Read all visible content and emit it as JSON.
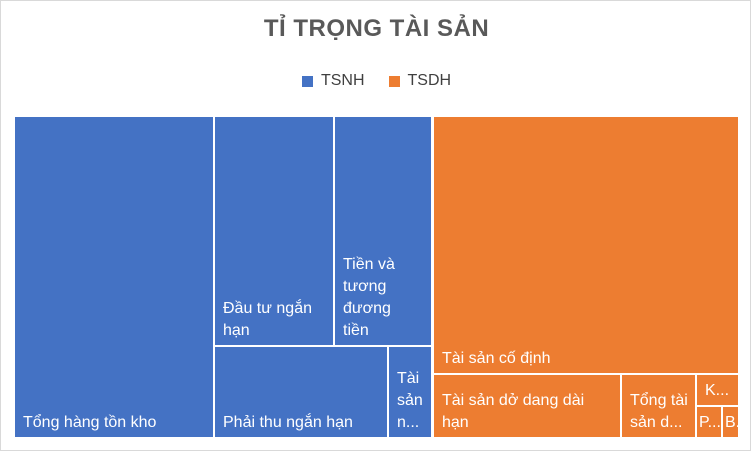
{
  "chart_data": {
    "type": "treemap",
    "title": "TỈ TRỌNG TÀI SẢN",
    "legend_position": "top",
    "series": [
      {
        "name": "TSNH",
        "color": "#4472C4",
        "items": [
          {
            "label": "Tổng hàng tồn kho",
            "value": 31.5
          },
          {
            "label": "Đầu tư ngắn hạn",
            "value": 11.3
          },
          {
            "label": "Tiền và tương đương tiền",
            "value": 9.0
          },
          {
            "label": "Phải thu ngắn hạn",
            "value": 8.1
          },
          {
            "label": "Tài sản n...",
            "value": 1.5
          }
        ]
      },
      {
        "name": "TSDH",
        "color": "#ED7D31",
        "items": [
          {
            "label": "Tài sản cố định",
            "value": 27.8
          },
          {
            "label": "Tài sản dở dang dài hạn",
            "value": 7.2
          },
          {
            "label": "Tổng tài sản d...",
            "value": 2.7
          },
          {
            "label": "K...",
            "value": 0.5
          },
          {
            "label": "P...",
            "value": 0.2
          },
          {
            "label": "B...",
            "value": 0.2
          }
        ]
      }
    ]
  }
}
